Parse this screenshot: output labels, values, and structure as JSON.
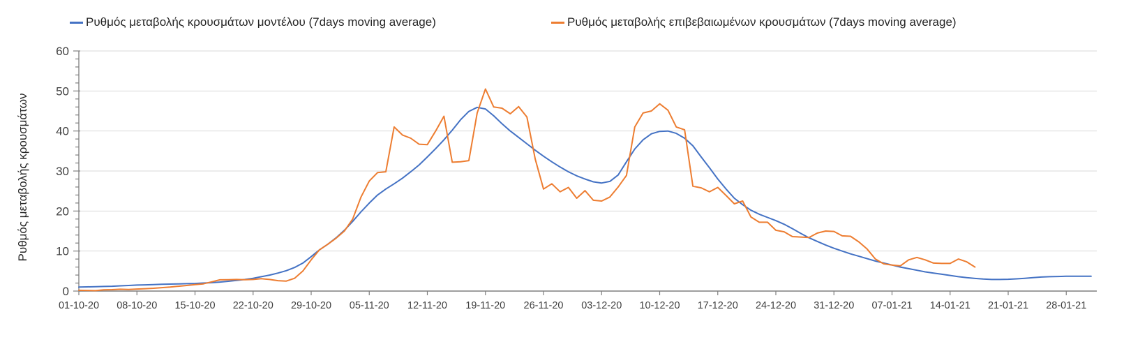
{
  "legend": {
    "position": "top",
    "items": [
      {
        "label": "Ρυθμός μεταβολής κρουσμάτων μοντέλου (7days moving average)",
        "color": "#4472C4"
      },
      {
        "label": "Ρυθμός μεταβολής επιβεβαιωμένων κρουσμάτων (7days moving average)",
        "color": "#ED7D31"
      }
    ]
  },
  "chart_data": {
    "type": "line",
    "title": "",
    "xlabel": "",
    "ylabel": "Ρυθμός μεταβολής κρουσμάτων",
    "ylim": [
      0,
      60
    ],
    "y_major_ticks": [
      0,
      10,
      20,
      30,
      40,
      50,
      60
    ],
    "y_minor_tick_step": 2,
    "grid": "horizontal-major-only",
    "x_tick_labels": [
      "01-10-20",
      "08-10-20",
      "15-10-20",
      "22-10-20",
      "29-10-20",
      "05-11-20",
      "12-11-20",
      "19-11-20",
      "26-11-20",
      "03-12-20",
      "10-12-20",
      "17-12-20",
      "24-12-20",
      "31-12-20",
      "07-01-21",
      "14-01-21",
      "21-01-21",
      "28-01-21"
    ],
    "x_tick_interval_days": 7,
    "x_unit": "daily points starting 01-10-20",
    "colors": {
      "axis": "#7f7f7f",
      "grid": "#d9d9d9",
      "tick_text": "#404040"
    },
    "series": [
      {
        "name": "Ρυθμός μεταβολής κρουσμάτων μοντέλου (7days moving average)",
        "color": "#4472C4",
        "values": [
          1.0,
          1.05,
          1.1,
          1.15,
          1.2,
          1.3,
          1.4,
          1.5,
          1.55,
          1.6,
          1.7,
          1.75,
          1.8,
          1.85,
          1.9,
          2.0,
          2.1,
          2.25,
          2.45,
          2.65,
          2.9,
          3.2,
          3.6,
          4.0,
          4.5,
          5.1,
          5.9,
          7.0,
          8.6,
          10.3,
          11.7,
          13.3,
          15.2,
          17.4,
          19.8,
          22.0,
          24.0,
          25.5,
          26.8,
          28.2,
          29.8,
          31.5,
          33.5,
          35.6,
          37.8,
          40.2,
          42.8,
          44.9,
          45.9,
          45.5,
          43.8,
          41.8,
          40.0,
          38.4,
          36.8,
          35.2,
          33.7,
          32.3,
          31.0,
          29.8,
          28.8,
          28.0,
          27.3,
          27.0,
          27.4,
          29.0,
          32.3,
          35.5,
          37.8,
          39.3,
          39.9,
          40.0,
          39.4,
          38.2,
          36.3,
          33.5,
          30.8,
          28.0,
          25.5,
          23.2,
          21.6,
          20.2,
          19.2,
          18.4,
          17.6,
          16.7,
          15.6,
          14.4,
          13.3,
          12.4,
          11.5,
          10.7,
          10.0,
          9.3,
          8.7,
          8.1,
          7.5,
          7.0,
          6.5,
          6.0,
          5.6,
          5.2,
          4.8,
          4.5,
          4.2,
          3.9,
          3.6,
          3.35,
          3.15,
          3.0,
          2.9,
          2.9,
          2.95,
          3.05,
          3.2,
          3.35,
          3.5,
          3.6,
          3.65,
          3.7,
          3.7,
          3.7,
          3.7
        ]
      },
      {
        "name": "Ρυθμός μεταβολής επιβεβαιωμένων κρουσμάτων (7days moving average)",
        "color": "#ED7D31",
        "values": [
          0.2,
          0.15,
          0.1,
          0.3,
          0.35,
          0.45,
          0.4,
          0.5,
          0.6,
          0.7,
          0.85,
          1.0,
          1.2,
          1.4,
          1.6,
          1.8,
          2.3,
          2.8,
          2.85,
          2.9,
          2.85,
          2.9,
          3.1,
          2.9,
          2.6,
          2.5,
          3.2,
          5.0,
          7.8,
          10.3,
          11.7,
          13.2,
          15.0,
          18.0,
          23.5,
          27.5,
          29.6,
          29.8,
          41.0,
          39.0,
          38.2,
          36.7,
          36.6,
          40.0,
          43.7,
          32.2,
          32.3,
          32.6,
          44.5,
          50.5,
          46.0,
          45.7,
          44.3,
          46.1,
          43.5,
          33.0,
          25.5,
          26.8,
          24.8,
          25.9,
          23.2,
          25.1,
          22.7,
          22.5,
          23.5,
          26.0,
          28.9,
          41.0,
          44.5,
          45.0,
          46.8,
          45.2,
          41.0,
          40.3,
          26.2,
          25.8,
          24.8,
          25.9,
          23.9,
          21.8,
          22.5,
          18.5,
          17.2,
          17.2,
          15.2,
          14.8,
          13.6,
          13.5,
          13.4,
          14.5,
          15.0,
          14.9,
          13.8,
          13.7,
          12.3,
          10.5,
          8.0,
          6.8,
          6.5,
          6.3,
          7.8,
          8.4,
          7.8,
          7.0,
          6.9,
          6.9,
          8.0,
          7.3,
          6.0
        ]
      }
    ]
  }
}
